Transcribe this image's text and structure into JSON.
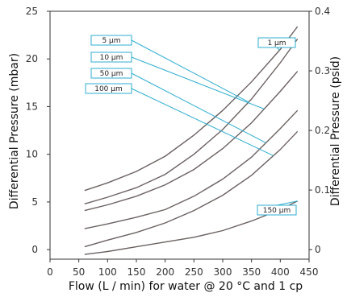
{
  "chart_data": {
    "type": "line",
    "xlabel": "Flow (L / min) for water @ 20 °C and 1 cp",
    "ylabel": "Differential Pressure (mbar)",
    "y2label": "Differential Pressure (psid)",
    "xlim": [
      0,
      450
    ],
    "ylim": [
      -1,
      25
    ],
    "y2lim": [
      -0.016,
      0.4
    ],
    "x_ticks": [
      "0",
      "50",
      "100",
      "150",
      "200",
      "250",
      "300",
      "350",
      "400",
      "450"
    ],
    "y_ticks": [
      "0",
      "5",
      "10",
      "15",
      "20",
      "25"
    ],
    "y2_ticks": [
      "0",
      "0.1",
      "0.2",
      "0.3",
      "0.4"
    ],
    "grid": false,
    "line_color": "#6b6160",
    "label_color": "#2eaed0",
    "series": [
      {
        "name": "1 µm",
        "x": [
          60,
          100,
          150,
          200,
          250,
          300,
          350,
          400,
          430
        ],
        "y": [
          6.2,
          7.0,
          8.2,
          9.8,
          12.0,
          14.6,
          17.6,
          21.0,
          23.4
        ]
      },
      {
        "name": "5 µm",
        "x": [
          60,
          100,
          150,
          200,
          250,
          300,
          350,
          400,
          430
        ],
        "y": [
          4.8,
          5.5,
          6.5,
          7.9,
          10.0,
          12.6,
          15.8,
          19.6,
          22.1
        ]
      },
      {
        "name": "10 µm",
        "x": [
          60,
          100,
          150,
          200,
          250,
          300,
          350,
          400,
          430
        ],
        "y": [
          4.1,
          4.7,
          5.6,
          6.8,
          8.4,
          10.6,
          13.3,
          16.6,
          18.7
        ]
      },
      {
        "name": "50 µm",
        "x": [
          60,
          100,
          150,
          200,
          250,
          300,
          350,
          400,
          430
        ],
        "y": [
          2.2,
          2.7,
          3.4,
          4.2,
          5.6,
          7.4,
          9.7,
          12.7,
          14.6
        ]
      },
      {
        "name": "100 µm",
        "x": [
          60,
          100,
          150,
          200,
          250,
          300,
          350,
          400,
          430
        ],
        "y": [
          0.3,
          1.0,
          1.8,
          2.8,
          4.1,
          5.7,
          7.8,
          10.5,
          12.4
        ]
      },
      {
        "name": "150 µm",
        "x": [
          60,
          100,
          150,
          200,
          250,
          300,
          350,
          400,
          430
        ],
        "y": [
          -0.5,
          -0.2,
          0.3,
          0.8,
          1.3,
          2.0,
          3.0,
          4.2,
          5.1
        ]
      }
    ],
    "labels": [
      {
        "text": "5 µm",
        "series": "5 µm",
        "at_x": 345
      },
      {
        "text": "10 µm",
        "series": "10 µm",
        "at_x": 372
      },
      {
        "text": "50 µm",
        "series": "50 µm",
        "at_x": 375
      },
      {
        "text": "100 µm",
        "series": "100 µm",
        "at_x": 388
      },
      {
        "text": "1 µm",
        "series": "1 µm",
        "at_x": 399
      },
      {
        "text": "150 µm",
        "series": "150 µm",
        "at_x": 430
      }
    ]
  }
}
